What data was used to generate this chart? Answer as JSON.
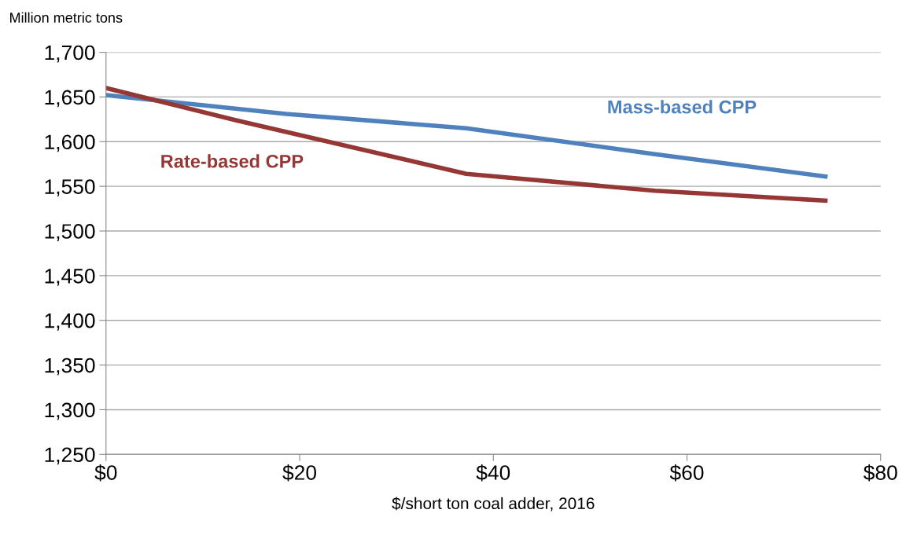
{
  "chart_data": {
    "type": "line",
    "ylabel": "Million metric tons",
    "xlabel": "$/short ton coal adder, 2016",
    "xlim": [
      0,
      80
    ],
    "xticks": [
      {
        "value": 0,
        "label": "$0"
      },
      {
        "value": 20,
        "label": "$20"
      },
      {
        "value": 40,
        "label": "$40"
      },
      {
        "value": 60,
        "label": "$60"
      },
      {
        "value": 80,
        "label": "$80"
      }
    ],
    "ylim": [
      1250,
      1700
    ],
    "yticks": [
      {
        "value": 1250,
        "label": "1,250"
      },
      {
        "value": 1300,
        "label": "1,300"
      },
      {
        "value": 1350,
        "label": "1,350"
      },
      {
        "value": 1400,
        "label": "1,400"
      },
      {
        "value": 1450,
        "label": "1,450"
      },
      {
        "value": 1500,
        "label": "1,500"
      },
      {
        "value": 1550,
        "label": "1,550"
      },
      {
        "value": 1600,
        "label": "1,600"
      },
      {
        "value": 1650,
        "label": "1,650"
      },
      {
        "value": 1700,
        "label": "1,700"
      }
    ],
    "grid": "y",
    "legend": false,
    "marker": "none",
    "line_style": "solid",
    "series": [
      {
        "name": "Mass-based CPP",
        "color": "#4f81bd",
        "x": [
          0,
          18.6,
          37.2,
          56.7,
          74.3
        ],
        "values": [
          1652,
          1631,
          1615,
          1586,
          1561
        ]
      },
      {
        "name": "Rate-based CPP",
        "color": "#953735",
        "x": [
          0,
          13.4,
          37.2,
          56.7,
          74.3
        ],
        "values": [
          1660,
          1624,
          1564,
          1545,
          1534
        ]
      }
    ]
  }
}
